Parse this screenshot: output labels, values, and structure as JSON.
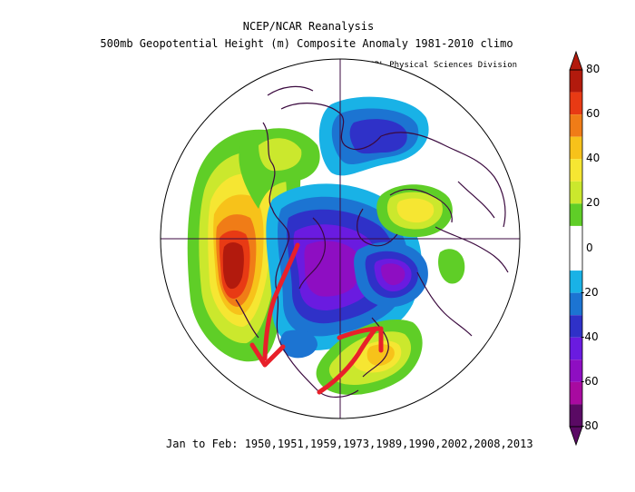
{
  "header": {
    "title": "NCEP/NCAR Reanalysis",
    "subtitle": "500mb Geopotential Height (m) Composite Anomaly 1981-2010 climo",
    "credit": "NOAA/ESRL Physical Sciences Division"
  },
  "caption": "Jan to Feb: 1950,1951,1959,1973,1989,1990,2002,2008,2013",
  "colorbar": {
    "min": -80,
    "max": 80,
    "tick_labels": [
      "80",
      "60",
      "40",
      "20",
      "0",
      "-20",
      "-40",
      "-60",
      "-80"
    ],
    "bins": [
      {
        "from": 70,
        "to": 80,
        "color": "#b21a0d"
      },
      {
        "from": 60,
        "to": 70,
        "color": "#e83a14"
      },
      {
        "from": 50,
        "to": 60,
        "color": "#f07c17"
      },
      {
        "from": 40,
        "to": 50,
        "color": "#f7c21a"
      },
      {
        "from": 30,
        "to": 40,
        "color": "#f6e632"
      },
      {
        "from": 20,
        "to": 30,
        "color": "#cbe82d"
      },
      {
        "from": 10,
        "to": 20,
        "color": "#5fce27"
      },
      {
        "from": 0,
        "to": 10,
        "color": "#ffffff"
      },
      {
        "from": -10,
        "to": 0,
        "color": "#ffffff"
      },
      {
        "from": -20,
        "to": -10,
        "color": "#19b2e6"
      },
      {
        "from": -30,
        "to": -20,
        "color": "#1c74d2"
      },
      {
        "from": -40,
        "to": -30,
        "color": "#2f31c8"
      },
      {
        "from": -50,
        "to": -40,
        "color": "#6a1be0"
      },
      {
        "from": -60,
        "to": -50,
        "color": "#8e0ec2"
      },
      {
        "from": -70,
        "to": -60,
        "color": "#a80aa0"
      },
      {
        "from": -80,
        "to": -70,
        "color": "#5a0a64"
      }
    ]
  },
  "map": {
    "projection": "north-polar-stereographic",
    "field": "500mb geopotential height anomaly",
    "features": [
      {
        "name": "North Pacific ridge",
        "sign": "positive",
        "peak": 80
      },
      {
        "name": "Western North America ridge",
        "sign": "positive",
        "peak": 30
      },
      {
        "name": "Central Canada / Hudson Bay trough",
        "sign": "negative",
        "peak": -60
      },
      {
        "name": "Arctic / Barents trough",
        "sign": "negative",
        "peak": -40
      },
      {
        "name": "Siberian trough",
        "sign": "negative",
        "peak": -60
      },
      {
        "name": "Western Europe ridge",
        "sign": "positive",
        "peak": 40
      },
      {
        "name": "North Atlantic ridge",
        "sign": "positive",
        "peak": 50
      },
      {
        "name": "East Asia positive patch",
        "sign": "positive",
        "peak": 20
      }
    ],
    "annotations": [
      {
        "type": "arrow",
        "color": "#e8202a",
        "description": "southward arrow along western North America"
      },
      {
        "type": "arrow",
        "color": "#e8202a",
        "description": "northeastward arrow over the Atlantic"
      }
    ]
  }
}
